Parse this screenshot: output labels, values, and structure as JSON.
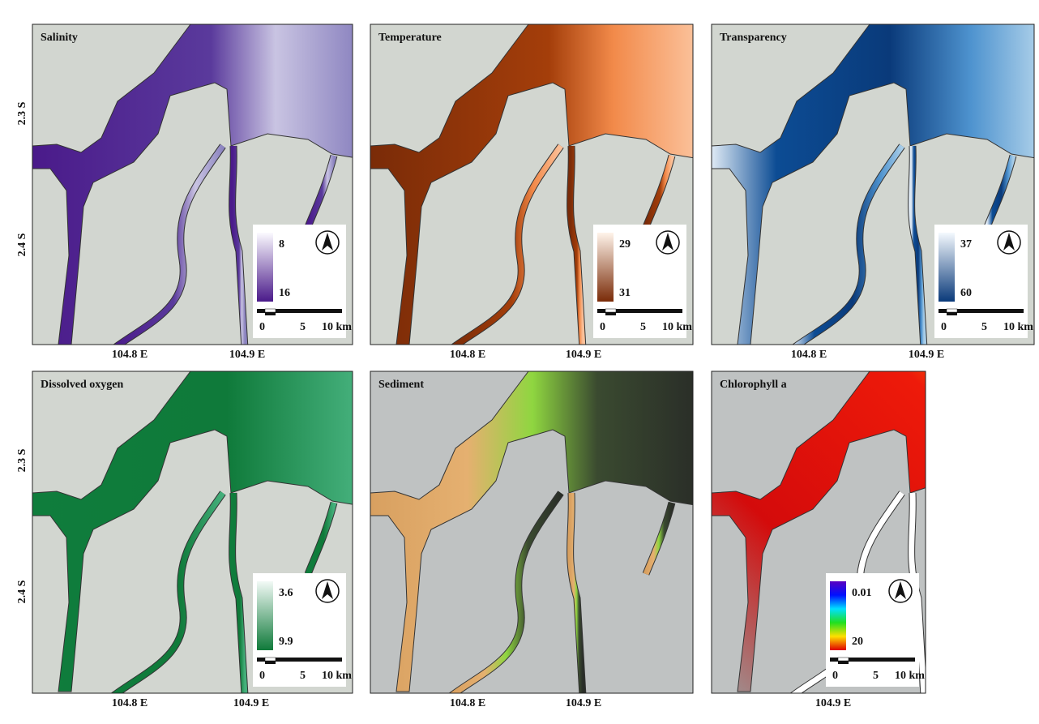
{
  "panels": [
    {
      "title": "Salinity",
      "legend": [
        "8",
        "16"
      ],
      "scale": [
        "0",
        "5",
        "10 km"
      ],
      "x_labels": [
        "104.8 E",
        "104.9 E"
      ],
      "y_labels": [
        "2.3 S",
        "2.4 S"
      ]
    },
    {
      "title": "Temperature",
      "legend": [
        "29",
        "31"
      ],
      "scale": [
        "0",
        "5",
        "10 km"
      ],
      "x_labels": [
        "104.8 E",
        "104.9 E"
      ]
    },
    {
      "title": "Transparency",
      "legend": [
        "37",
        "60"
      ],
      "scale": [
        "0",
        "5",
        "10 km"
      ],
      "x_labels": [
        "104.8 E",
        "104.9 E"
      ]
    },
    {
      "title": "Dissolved oxygen",
      "legend": [
        "3.6",
        "9.9"
      ],
      "scale": [
        "0",
        "5",
        "10 km"
      ],
      "x_labels": [
        "104.8 E",
        "104.9 E"
      ],
      "y_labels": [
        "2.3 S",
        "2.4 S"
      ]
    },
    {
      "title": "Sediment",
      "x_labels": [
        "104.8 E",
        "104.9 E"
      ]
    },
    {
      "title": "Chlorophyll a",
      "legend": [
        "0.01",
        "20"
      ],
      "scale": [
        "0",
        "5",
        "10 km"
      ],
      "x_labels": [
        "104.9 E"
      ]
    }
  ]
}
